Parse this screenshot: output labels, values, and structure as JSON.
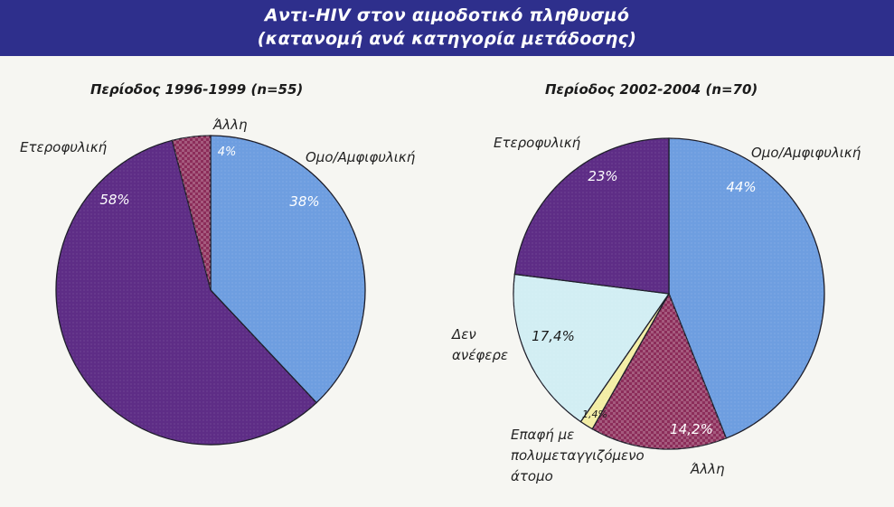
{
  "header": {
    "title_line1": "Αντι-HIV στον αιμοδοτικό πληθυσμό",
    "title_line2": "(κατανομή ανά κατηγορία μετάδοσης)"
  },
  "chart_data": [
    {
      "type": "pie",
      "title": "Περίοδος 1996-1999 (n=55)",
      "slices": [
        {
          "label": "Ομο/Αμφιφυλική",
          "value": 38,
          "value_label": "38%",
          "color": "#6e9ee0",
          "pattern": "dots"
        },
        {
          "label": "Ετεροφυλική",
          "value": 58,
          "value_label": "58%",
          "color": "#5e2d86",
          "pattern": "dots"
        },
        {
          "label": "Άλλη",
          "value": 4,
          "value_label": "4%",
          "color": "#8c2d5a",
          "pattern": "checker"
        }
      ]
    },
    {
      "type": "pie",
      "title": "Περίοδος 2002-2004 (n=70)",
      "slices": [
        {
          "label": "Ομο/Αμφιφυλική",
          "value": 44,
          "value_label": "44%",
          "color": "#6e9ee0",
          "pattern": "dots"
        },
        {
          "label": "Άλλη",
          "value": 14.2,
          "value_label": "14,2%",
          "color": "#8c2d5a",
          "pattern": "checker"
        },
        {
          "label": "Επαφή με πολυμεταγγιζόμενο άτομο",
          "value": 1.4,
          "value_label": "1,4%",
          "color": "#f3eea6",
          "pattern": "dots"
        },
        {
          "label": "Δεν ανέφερε",
          "value": 17.4,
          "value_label": "17,4%",
          "color": "#d2eef3",
          "pattern": "dots"
        },
        {
          "label": "Ετεροφυλική",
          "value": 23,
          "value_label": "23%",
          "color": "#5e2d86",
          "pattern": "dots"
        }
      ]
    }
  ]
}
